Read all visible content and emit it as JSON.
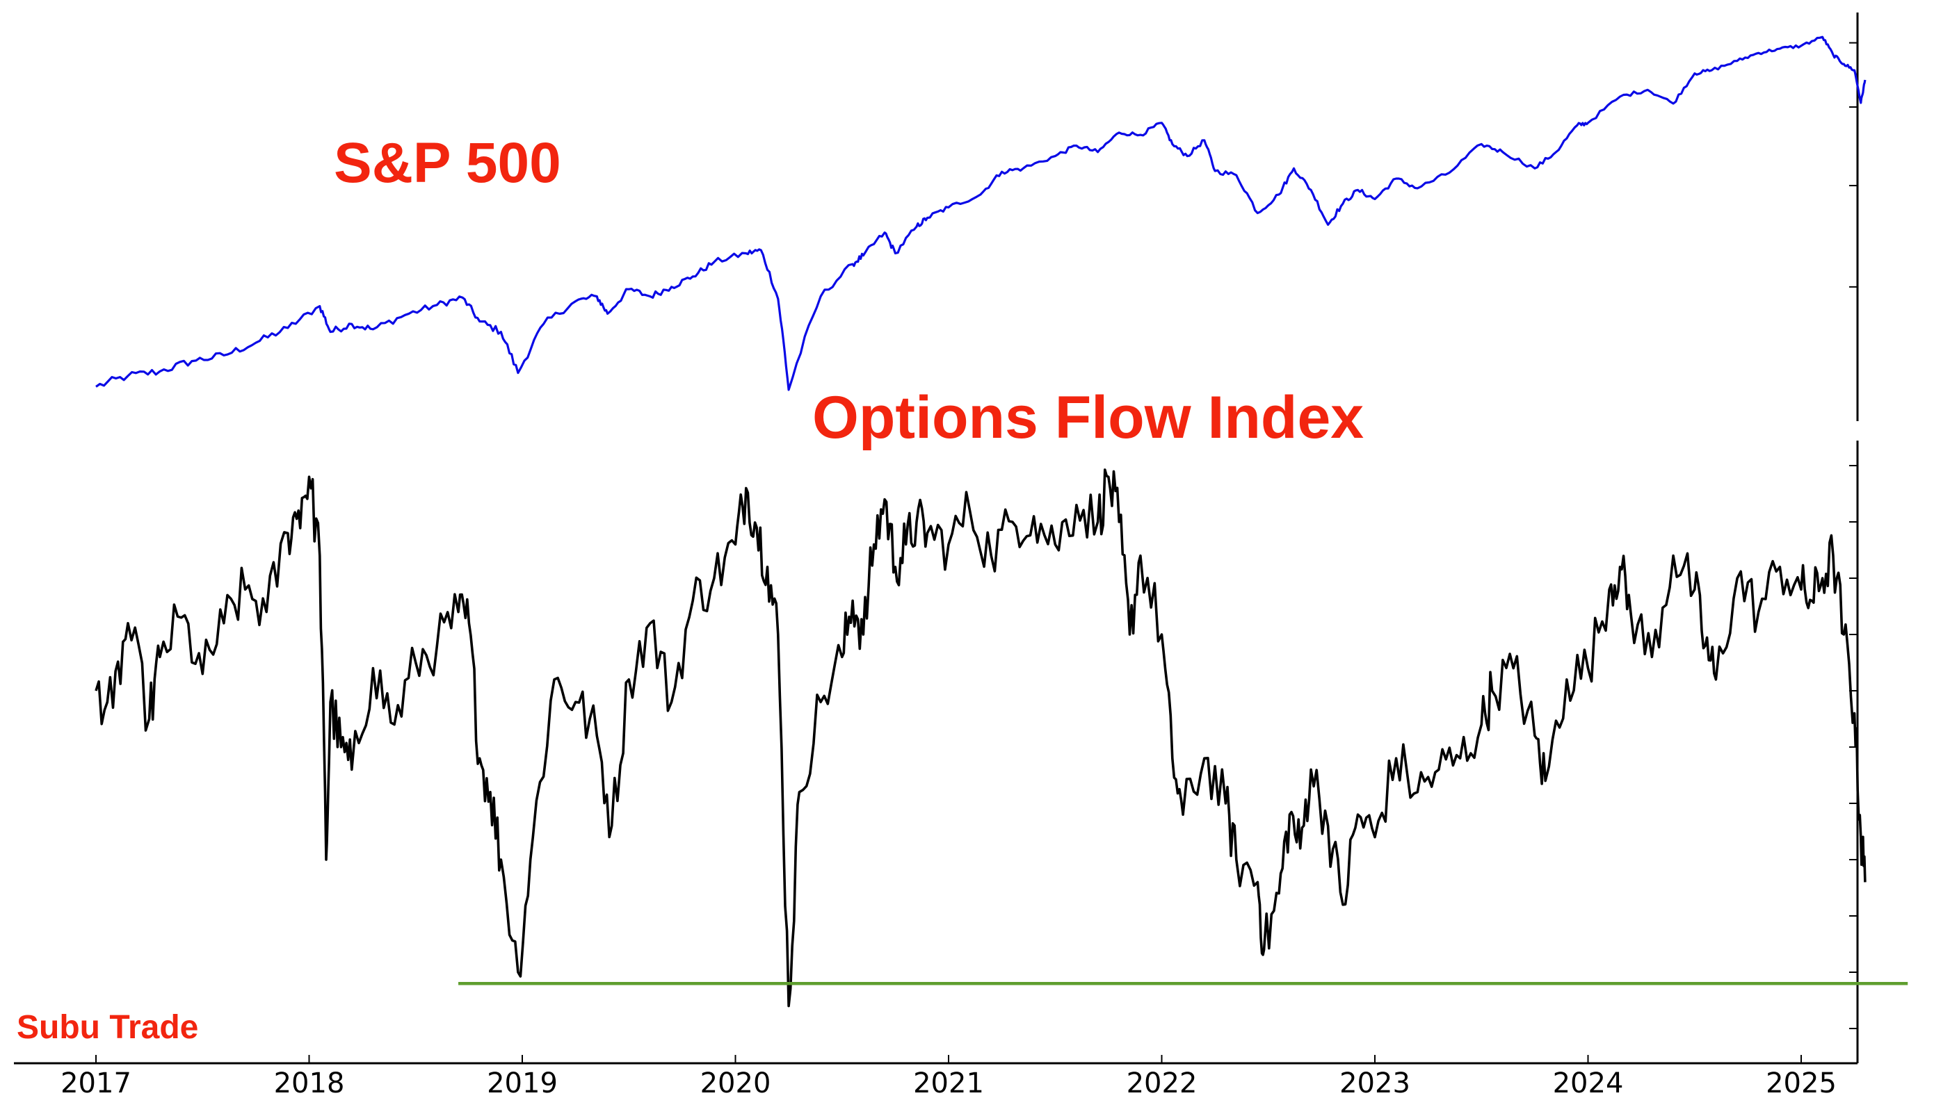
{
  "watermark": "Subu Trade",
  "colors": {
    "title": "#f2250f",
    "spx_line": "#0a0ae6",
    "flow_line": "#000000",
    "threshold": "#5e9e2e",
    "axis": "#000000"
  },
  "chart_data": [
    {
      "type": "line",
      "title": "S&P 500",
      "xlabel": "",
      "ylabel": "",
      "x_ticks": [
        "2017",
        "2018",
        "2019",
        "2020",
        "2021",
        "2022",
        "2023",
        "2024",
        "2025"
      ],
      "xlim": [
        2017.0,
        2025.5
      ],
      "ylim": [
        2200,
        6200
      ],
      "y_scale": "log",
      "y_tick_labels_visible": false,
      "grid": false,
      "series": [
        {
          "values_x": [
            2017.0,
            2017.15,
            2017.3,
            2017.45,
            2017.6,
            2017.75,
            2017.9,
            2018.05,
            2018.1,
            2018.2,
            2018.3,
            2018.45,
            2018.6,
            2018.72,
            2018.8,
            2018.9,
            2018.98,
            2019.1,
            2019.25,
            2019.35,
            2019.4,
            2019.5,
            2019.6,
            2019.7,
            2019.8,
            2019.9,
            2020.05,
            2020.12,
            2020.2,
            2020.25,
            2020.4,
            2020.55,
            2020.6,
            2020.7,
            2020.75,
            2020.85,
            2020.9,
            2021.0,
            2021.15,
            2021.25,
            2021.35,
            2021.5,
            2021.6,
            2021.7,
            2021.8,
            2021.9,
            2022.0,
            2022.05,
            2022.12,
            2022.2,
            2022.25,
            2022.35,
            2022.45,
            2022.55,
            2022.62,
            2022.7,
            2022.78,
            2022.85,
            2022.92,
            2023.0,
            2023.1,
            2023.2,
            2023.35,
            2023.5,
            2023.6,
            2023.75,
            2023.85,
            2023.95,
            2024.0,
            2024.15,
            2024.28,
            2024.4,
            2024.5,
            2024.58,
            2024.7,
            2024.8,
            2024.9,
            2025.0,
            2025.1,
            2025.15,
            2025.2,
            2025.25,
            2025.28,
            2025.3
          ],
          "values_y": [
            2260,
            2330,
            2360,
            2430,
            2470,
            2560,
            2670,
            2840,
            2640,
            2700,
            2660,
            2770,
            2850,
            2910,
            2720,
            2640,
            2350,
            2700,
            2880,
            2920,
            2780,
            2980,
            2920,
            3000,
            3090,
            3220,
            3300,
            3330,
            2900,
            2240,
            2920,
            3200,
            3280,
            3500,
            3300,
            3560,
            3650,
            3760,
            3900,
            4160,
            4200,
            4350,
            4480,
            4400,
            4650,
            4620,
            4780,
            4500,
            4350,
            4550,
            4170,
            4120,
            3700,
            3900,
            4200,
            3950,
            3580,
            3800,
            3950,
            3850,
            4080,
            3970,
            4150,
            4500,
            4400,
            4200,
            4400,
            4750,
            4780,
            5150,
            5250,
            5050,
            5500,
            5550,
            5700,
            5830,
            5900,
            5950,
            6100,
            5800,
            5650,
            5550,
            5060,
            5400
          ]
        }
      ]
    },
    {
      "type": "line",
      "title": "Options Flow Index",
      "xlabel": "",
      "ylabel": "",
      "x_ticks": [
        "2017",
        "2018",
        "2019",
        "2020",
        "2021",
        "2022",
        "2023",
        "2024",
        "2025"
      ],
      "xlim": [
        2017.0,
        2025.5
      ],
      "ylim": [
        0,
        100
      ],
      "y_tick_labels_visible": false,
      "grid": false,
      "series": [
        {
          "values_x": [
            2017.0,
            2017.08,
            2017.15,
            2017.25,
            2017.3,
            2017.4,
            2017.5,
            2017.6,
            2017.7,
            2017.8,
            2017.9,
            2017.95,
            2018.0,
            2018.05,
            2018.08,
            2018.1,
            2018.15,
            2018.2,
            2018.3,
            2018.4,
            2018.5,
            2018.6,
            2018.7,
            2018.75,
            2018.8,
            2018.85,
            2018.9,
            2018.98,
            2019.05,
            2019.15,
            2019.25,
            2019.35,
            2019.42,
            2019.5,
            2019.6,
            2019.7,
            2019.8,
            2019.9,
            2020.0,
            2020.05,
            2020.1,
            2020.15,
            2020.2,
            2020.25,
            2020.3,
            2020.4,
            2020.5,
            2020.55,
            2020.6,
            2020.65,
            2020.7,
            2020.75,
            2020.8,
            2020.85,
            2020.9,
            2021.0,
            2021.1,
            2021.2,
            2021.3,
            2021.4,
            2021.5,
            2021.6,
            2021.7,
            2021.75,
            2021.8,
            2021.85,
            2021.9,
            2022.0,
            2022.05,
            2022.1,
            2022.2,
            2022.3,
            2022.35,
            2022.45,
            2022.48,
            2022.55,
            2022.6,
            2022.65,
            2022.7,
            2022.78,
            2022.85,
            2022.92,
            2023.0,
            2023.1,
            2023.2,
            2023.3,
            2023.4,
            2023.5,
            2023.55,
            2023.65,
            2023.75,
            2023.8,
            2023.9,
            2024.0,
            2024.1,
            2024.15,
            2024.2,
            2024.3,
            2024.4,
            2024.5,
            2024.55,
            2024.6,
            2024.7,
            2024.8,
            2024.9,
            2025.0,
            2025.05,
            2025.1,
            2025.15,
            2025.2,
            2025.25,
            2025.28,
            2025.3
          ],
          "values_y": [
            60,
            57,
            72,
            55,
            66,
            73,
            63,
            72,
            78,
            74,
            88,
            92,
            98,
            84,
            30,
            58,
            50,
            46,
            64,
            54,
            65,
            68,
            74,
            72,
            48,
            42,
            30,
            10,
            34,
            62,
            58,
            52,
            36,
            62,
            72,
            58,
            76,
            80,
            86,
            96,
            89,
            82,
            70,
            4,
            42,
            58,
            66,
            76,
            70,
            86,
            94,
            82,
            86,
            90,
            88,
            86,
            92,
            84,
            90,
            91,
            86,
            93,
            90,
            98,
            90,
            70,
            84,
            70,
            48,
            38,
            48,
            40,
            30,
            26,
            14,
            24,
            38,
            32,
            46,
            36,
            22,
            38,
            34,
            48,
            42,
            46,
            48,
            54,
            60,
            64,
            52,
            44,
            62,
            64,
            78,
            82,
            74,
            66,
            84,
            78,
            68,
            62,
            80,
            74,
            82,
            78,
            76,
            80,
            84,
            70,
            56,
            34,
            26
          ]
        }
      ],
      "threshold": {
        "y": 8,
        "x_start": 2018.7,
        "x_end": 2025.5
      }
    }
  ]
}
